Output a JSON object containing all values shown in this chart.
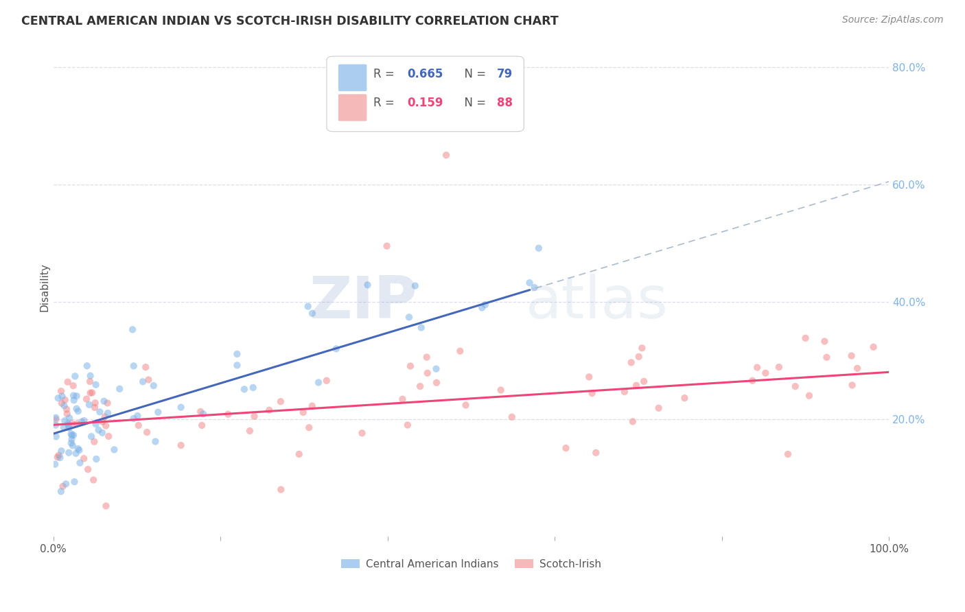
{
  "title": "CENTRAL AMERICAN INDIAN VS SCOTCH-IRISH DISABILITY CORRELATION CHART",
  "source": "Source: ZipAtlas.com",
  "ylabel": "Disability",
  "xlim": [
    0.0,
    1.0
  ],
  "ylim": [
    0.0,
    0.85
  ],
  "y_ticks_right": [
    0.2,
    0.4,
    0.6,
    0.8
  ],
  "y_tick_labels_right": [
    "20.0%",
    "40.0%",
    "60.0%",
    "80.0%"
  ],
  "blue_color": "#7EB3E8",
  "pink_color": "#F08080",
  "blue_line_color": "#4466BB",
  "pink_line_color": "#EE4477",
  "dashed_line_color": "#AABBCC",
  "watermark_zip": "ZIP",
  "watermark_atlas": "atlas",
  "background_color": "#FFFFFF",
  "grid_color": "#DDDDEE",
  "right_tick_color": "#7EB3E8"
}
